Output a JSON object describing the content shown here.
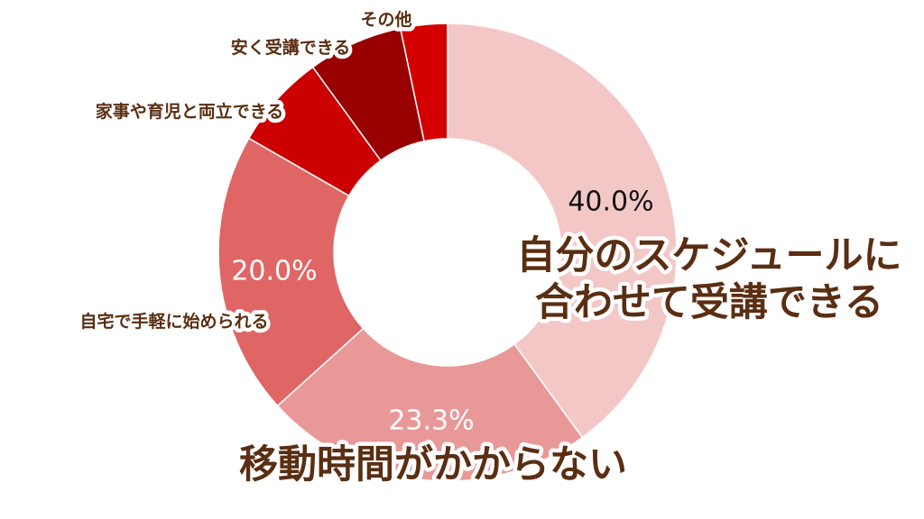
{
  "chart_data": {
    "type": "pie",
    "categories": [
      "自分のスケジュールに合わせて受講できる",
      "移動時間がかからない",
      "自宅で手軽に始められる",
      "家事や育児と両立できる",
      "安く受講できる",
      "その他"
    ],
    "values": [
      40.0,
      23.3,
      20.0,
      6.7,
      6.7,
      3.3
    ],
    "value_labels": [
      "40.0%",
      "23.3%",
      "20.0%",
      "",
      "",
      ""
    ],
    "slice_labels": [
      "自分のスケジュールに\n合わせて受講できる",
      "移動時間がかからない",
      "自宅で手軽に始められる",
      "家事や育児と両立できる",
      "安く受講できる",
      "その他"
    ],
    "colors": [
      "#f4c7c7",
      "#e99898",
      "#e06666",
      "#cc0000",
      "#990000",
      "#d40000"
    ],
    "value_label_colors": [
      "#111111",
      "#ffffff",
      "#ffffff",
      "#ffffff",
      "#ffffff",
      "#ffffff"
    ],
    "donut": true,
    "start_angle_deg": 0,
    "direction": "clockwise",
    "legend": "none"
  }
}
